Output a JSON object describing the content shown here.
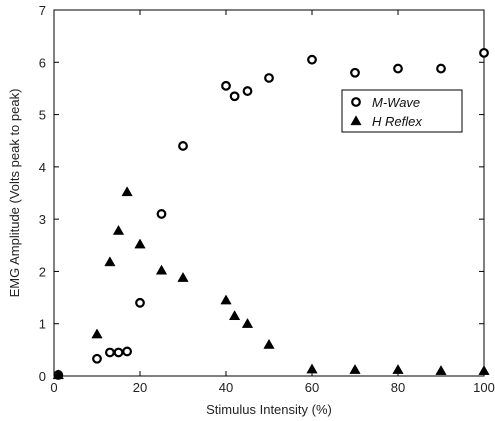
{
  "chart_data": {
    "type": "scatter",
    "title": "",
    "xlabel": "Stimulus Intensity (%)",
    "ylabel": "EMG Amplitude (Volts peak to peak)",
    "xlim": [
      0,
      100
    ],
    "ylim": [
      0,
      7
    ],
    "xticks": [
      0,
      20,
      40,
      60,
      80,
      100
    ],
    "yticks": [
      0,
      1,
      2,
      3,
      4,
      5,
      6,
      7
    ],
    "grid": false,
    "legend_position": "top-right",
    "series": [
      {
        "name": "M-Wave",
        "marker": "circle",
        "x": [
          1,
          10,
          13,
          15,
          17,
          20,
          25,
          30,
          40,
          42,
          45,
          50,
          60,
          70,
          80,
          90,
          100
        ],
        "y": [
          0.02,
          0.33,
          0.45,
          0.45,
          0.47,
          1.4,
          3.1,
          4.4,
          5.55,
          5.35,
          5.45,
          5.7,
          6.05,
          5.8,
          5.88,
          5.88,
          6.18
        ]
      },
      {
        "name": "H Reflex",
        "marker": "triangle",
        "x": [
          1,
          10,
          13,
          15,
          17,
          20,
          25,
          30,
          40,
          42,
          45,
          50,
          60,
          70,
          80,
          90,
          100
        ],
        "y": [
          0.02,
          0.8,
          2.18,
          2.78,
          3.52,
          2.52,
          2.02,
          1.88,
          1.45,
          1.15,
          1.0,
          0.6,
          0.13,
          0.12,
          0.12,
          0.1,
          0.1
        ]
      }
    ]
  }
}
